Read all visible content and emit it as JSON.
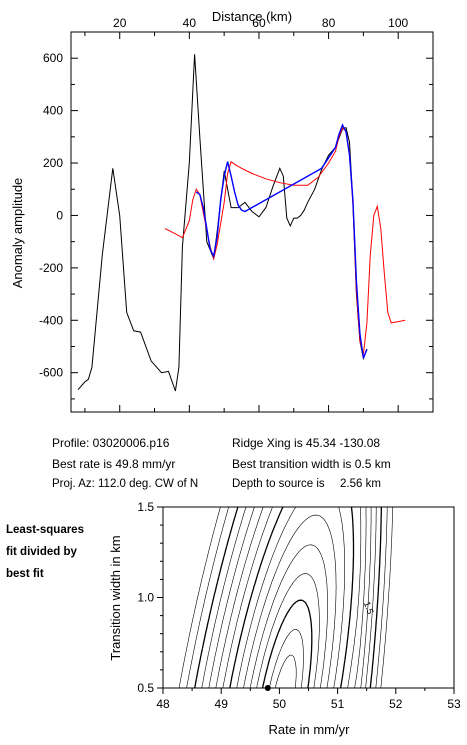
{
  "chart_data": [
    {
      "type": "line",
      "title": "",
      "xlabel": "Distance (km)",
      "ylabel": "Anomaly amplitude",
      "xlim": [
        6,
        110
      ],
      "ylim": [
        -750,
        700
      ],
      "x_ticks": [
        20,
        40,
        60,
        80,
        100
      ],
      "y_ticks": [
        -600,
        -400,
        -200,
        0,
        200,
        400,
        600
      ],
      "x_tick_labels": [
        "20",
        "40",
        "60",
        "80",
        "100"
      ],
      "y_tick_labels": [
        "-600",
        "-400",
        "-200",
        "0",
        "200",
        "400",
        "600"
      ],
      "grid": false,
      "series": [
        {
          "color": "#000000",
          "x": [
            8,
            10,
            11,
            12,
            15,
            18,
            20,
            22,
            24,
            26,
            29,
            32,
            34,
            36,
            37,
            38,
            40,
            41.5,
            43,
            45,
            47,
            48,
            50,
            52,
            54,
            56,
            58,
            60,
            62,
            64,
            66,
            67,
            68,
            69,
            70,
            71,
            72,
            73,
            74,
            76,
            78,
            80,
            82,
            84,
            85,
            86,
            87,
            88,
            89,
            90,
            91
          ],
          "y": [
            -665,
            -635,
            -625,
            -580,
            -150,
            180,
            0,
            -370,
            -440,
            -445,
            -555,
            -600,
            -595,
            -670,
            -580,
            -120,
            200,
            615,
            300,
            -100,
            -165,
            -60,
            170,
            30,
            30,
            50,
            15,
            -5,
            30,
            110,
            180,
            150,
            -10,
            -40,
            -10,
            -10,
            0,
            20,
            50,
            100,
            175,
            230,
            260,
            330,
            335,
            280,
            50,
            -300,
            -480,
            -545,
            -510
          ]
        },
        {
          "color": "#ff0000",
          "x": [
            33,
            36,
            38,
            40,
            41,
            42,
            43,
            44,
            46,
            47,
            48,
            50,
            51,
            52,
            53,
            55,
            58,
            62,
            66,
            70,
            74,
            77,
            80,
            82,
            83,
            84,
            85,
            86,
            87,
            88,
            89,
            90,
            91,
            92,
            93,
            94,
            95,
            96,
            97,
            98,
            100,
            102
          ],
          "y": [
            -50,
            -70,
            -85,
            -20,
            60,
            100,
            80,
            10,
            -120,
            -165,
            -110,
            50,
            160,
            205,
            195,
            180,
            160,
            140,
            125,
            115,
            115,
            145,
            200,
            245,
            300,
            335,
            320,
            240,
            40,
            -290,
            -480,
            -530,
            -410,
            -150,
            0,
            35,
            -50,
            -220,
            -370,
            -410,
            -405,
            -400
          ]
        },
        {
          "color": "#0000ff",
          "x": [
            42,
            43,
            44,
            45,
            46,
            47,
            48,
            49,
            50,
            51,
            52,
            53,
            54,
            55,
            56,
            78,
            80,
            82,
            83,
            84,
            85,
            86,
            87,
            88,
            89,
            90,
            91
          ],
          "y": [
            90,
            80,
            30,
            -50,
            -130,
            -155,
            -80,
            60,
            150,
            205,
            150,
            90,
            40,
            20,
            15,
            180,
            220,
            260,
            310,
            345,
            320,
            230,
            60,
            -250,
            -450,
            -545,
            -510
          ]
        }
      ]
    },
    {
      "type": "contour",
      "title": "",
      "xlabel": "Rate in mm/yr",
      "ylabel": "Transition width in km",
      "xlim": [
        48,
        53
      ],
      "ylim": [
        0.5,
        1.5
      ],
      "x_ticks": [
        48,
        49,
        50,
        51,
        52,
        53
      ],
      "y_ticks": [
        0.5,
        1.0,
        1.5
      ],
      "x_tick_labels": [
        "48",
        "49",
        "50",
        "51",
        "52",
        "53"
      ],
      "y_tick_labels": [
        "0.5",
        "1.0",
        "1.5"
      ],
      "best_fit_point": {
        "x": 49.8,
        "y": 0.5
      },
      "contour_label": "1.5",
      "contour_label_at": {
        "x": 51.45,
        "y": 0.97
      },
      "grid": false
    }
  ],
  "info": {
    "profile": "Profile: 03020006.p16",
    "best_rate": "Best rate is 49.8 mm/yr",
    "proj_az": "Proj. Az: 112.0 deg. CW of N",
    "ridge_xing": "Ridge Xing is 45.34 -130.08",
    "transition": "Best transition width is 0.5 km",
    "depth_label": "Depth to source is",
    "depth_value": "2.56 km"
  },
  "side_caption": {
    "line1": "Least-squares",
    "line2": "fit divided by",
    "line3": "best fit"
  }
}
